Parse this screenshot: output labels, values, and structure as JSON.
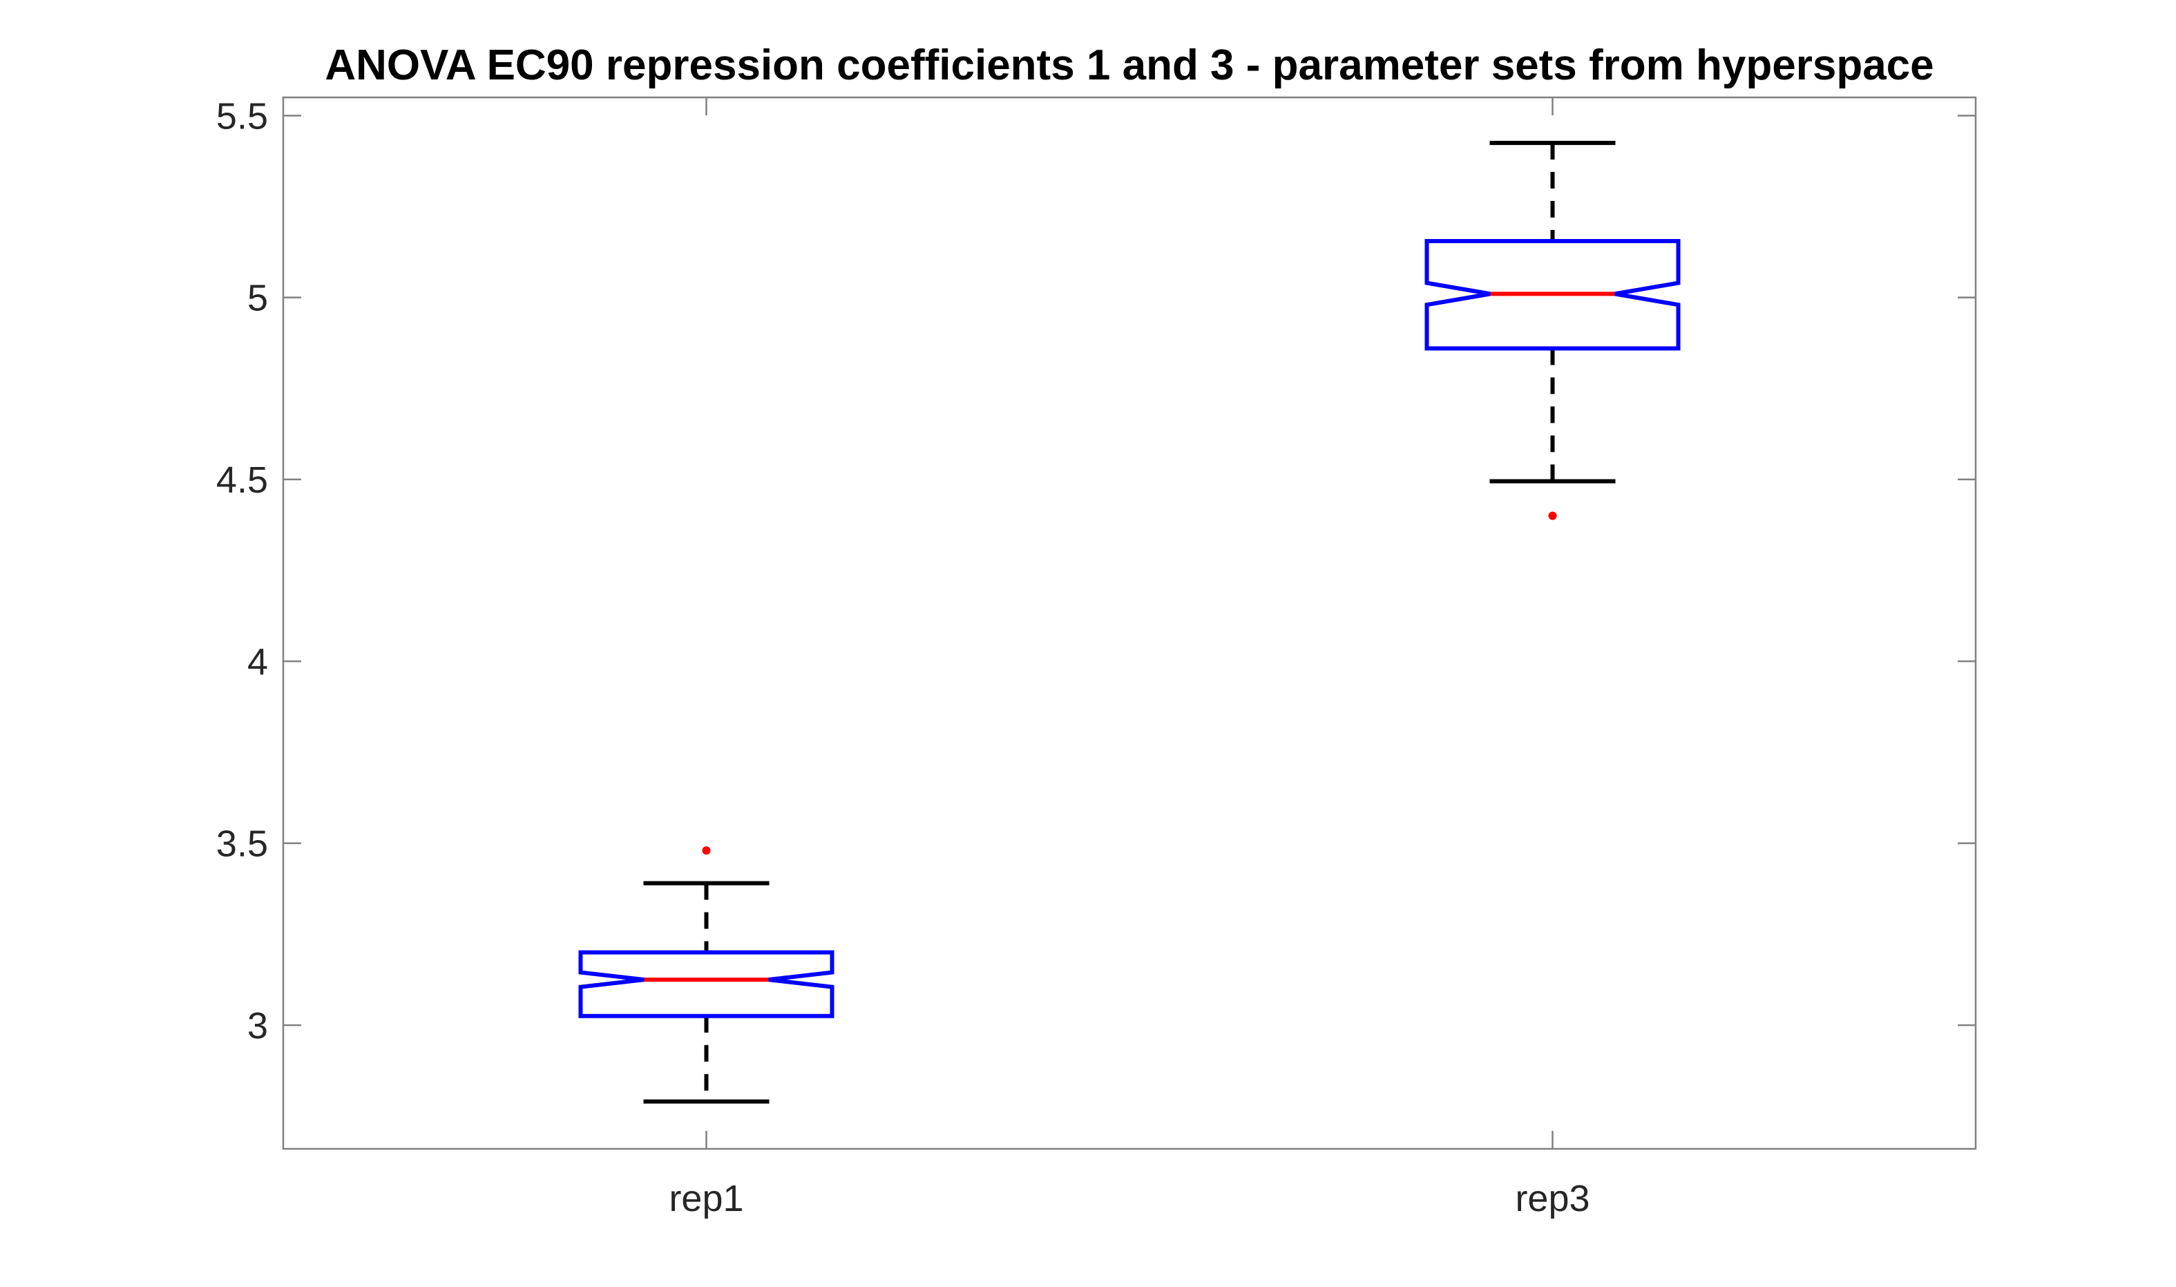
{
  "chart_data": {
    "type": "boxplot",
    "title": "ANOVA EC90 repression coefficients 1 and 3 - parameter sets from hyperspace",
    "xlabel": "",
    "ylabel": "",
    "categories": [
      "rep1",
      "rep3"
    ],
    "ylim": [
      2.66,
      5.55
    ],
    "yticks": [
      3,
      3.5,
      4,
      4.5,
      5,
      5.5
    ],
    "ytick_labels": [
      "3",
      "3.5",
      "4",
      "4.5",
      "5",
      "5.5"
    ],
    "boxes": [
      {
        "label": "rep1",
        "whisker_low": 2.79,
        "q1": 3.025,
        "median": 3.125,
        "q3": 3.2,
        "whisker_high": 3.39,
        "notch_low": 3.105,
        "notch_high": 3.145,
        "outliers": [
          3.48
        ]
      },
      {
        "label": "rep3",
        "whisker_low": 4.495,
        "q1": 4.86,
        "median": 5.01,
        "q3": 5.155,
        "whisker_high": 5.425,
        "notch_low": 4.98,
        "notch_high": 5.04,
        "outliers": [
          4.4
        ]
      }
    ],
    "grid": false,
    "colors": {
      "box": "#0000ff",
      "median": "#ff0000",
      "whisker": "#000000",
      "outlier": "#ff0000",
      "axes": "#808080",
      "text": "#262626"
    }
  }
}
